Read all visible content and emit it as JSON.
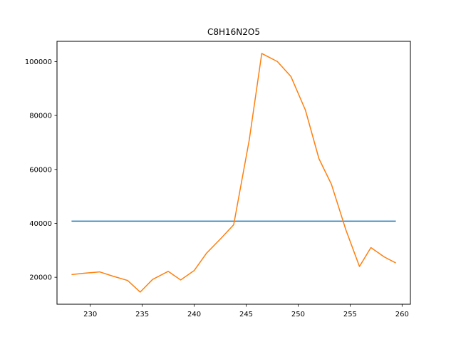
{
  "chart_data": {
    "type": "line",
    "title": "C8H16N2O5",
    "xlabel": "",
    "ylabel": "",
    "xlim": [
      226.8,
      260.8
    ],
    "ylim": [
      10000,
      107500
    ],
    "xticks": [
      230,
      235,
      240,
      245,
      250,
      255,
      260
    ],
    "yticks": [
      20000,
      40000,
      60000,
      80000,
      100000
    ],
    "xtick_labels": [
      "230",
      "235",
      "240",
      "245",
      "250",
      "255",
      "260"
    ],
    "ytick_labels": [
      "20000",
      "40000",
      "60000",
      "80000",
      "100000"
    ],
    "grid": false,
    "series": [
      {
        "color": "#1f77b4",
        "x": [
          228.2,
          259.4
        ],
        "y": [
          40800,
          40800
        ]
      },
      {
        "color": "#ff7f0e",
        "x": [
          228.2,
          229.4,
          230.9,
          232.1,
          233.6,
          234.8,
          236.0,
          237.5,
          238.7,
          240.0,
          241.2,
          242.6,
          243.8,
          245.3,
          246.5,
          248.0,
          249.3,
          250.7,
          252.0,
          253.2,
          254.6,
          255.9,
          257.0,
          258.3,
          259.4
        ],
        "y": [
          21000,
          21500,
          22000,
          20500,
          18800,
          14500,
          19200,
          22200,
          19000,
          22500,
          29000,
          34500,
          39500,
          71000,
          103000,
          100000,
          94500,
          82000,
          64000,
          54500,
          37500,
          24000,
          31000,
          27500,
          25300
        ]
      }
    ]
  }
}
